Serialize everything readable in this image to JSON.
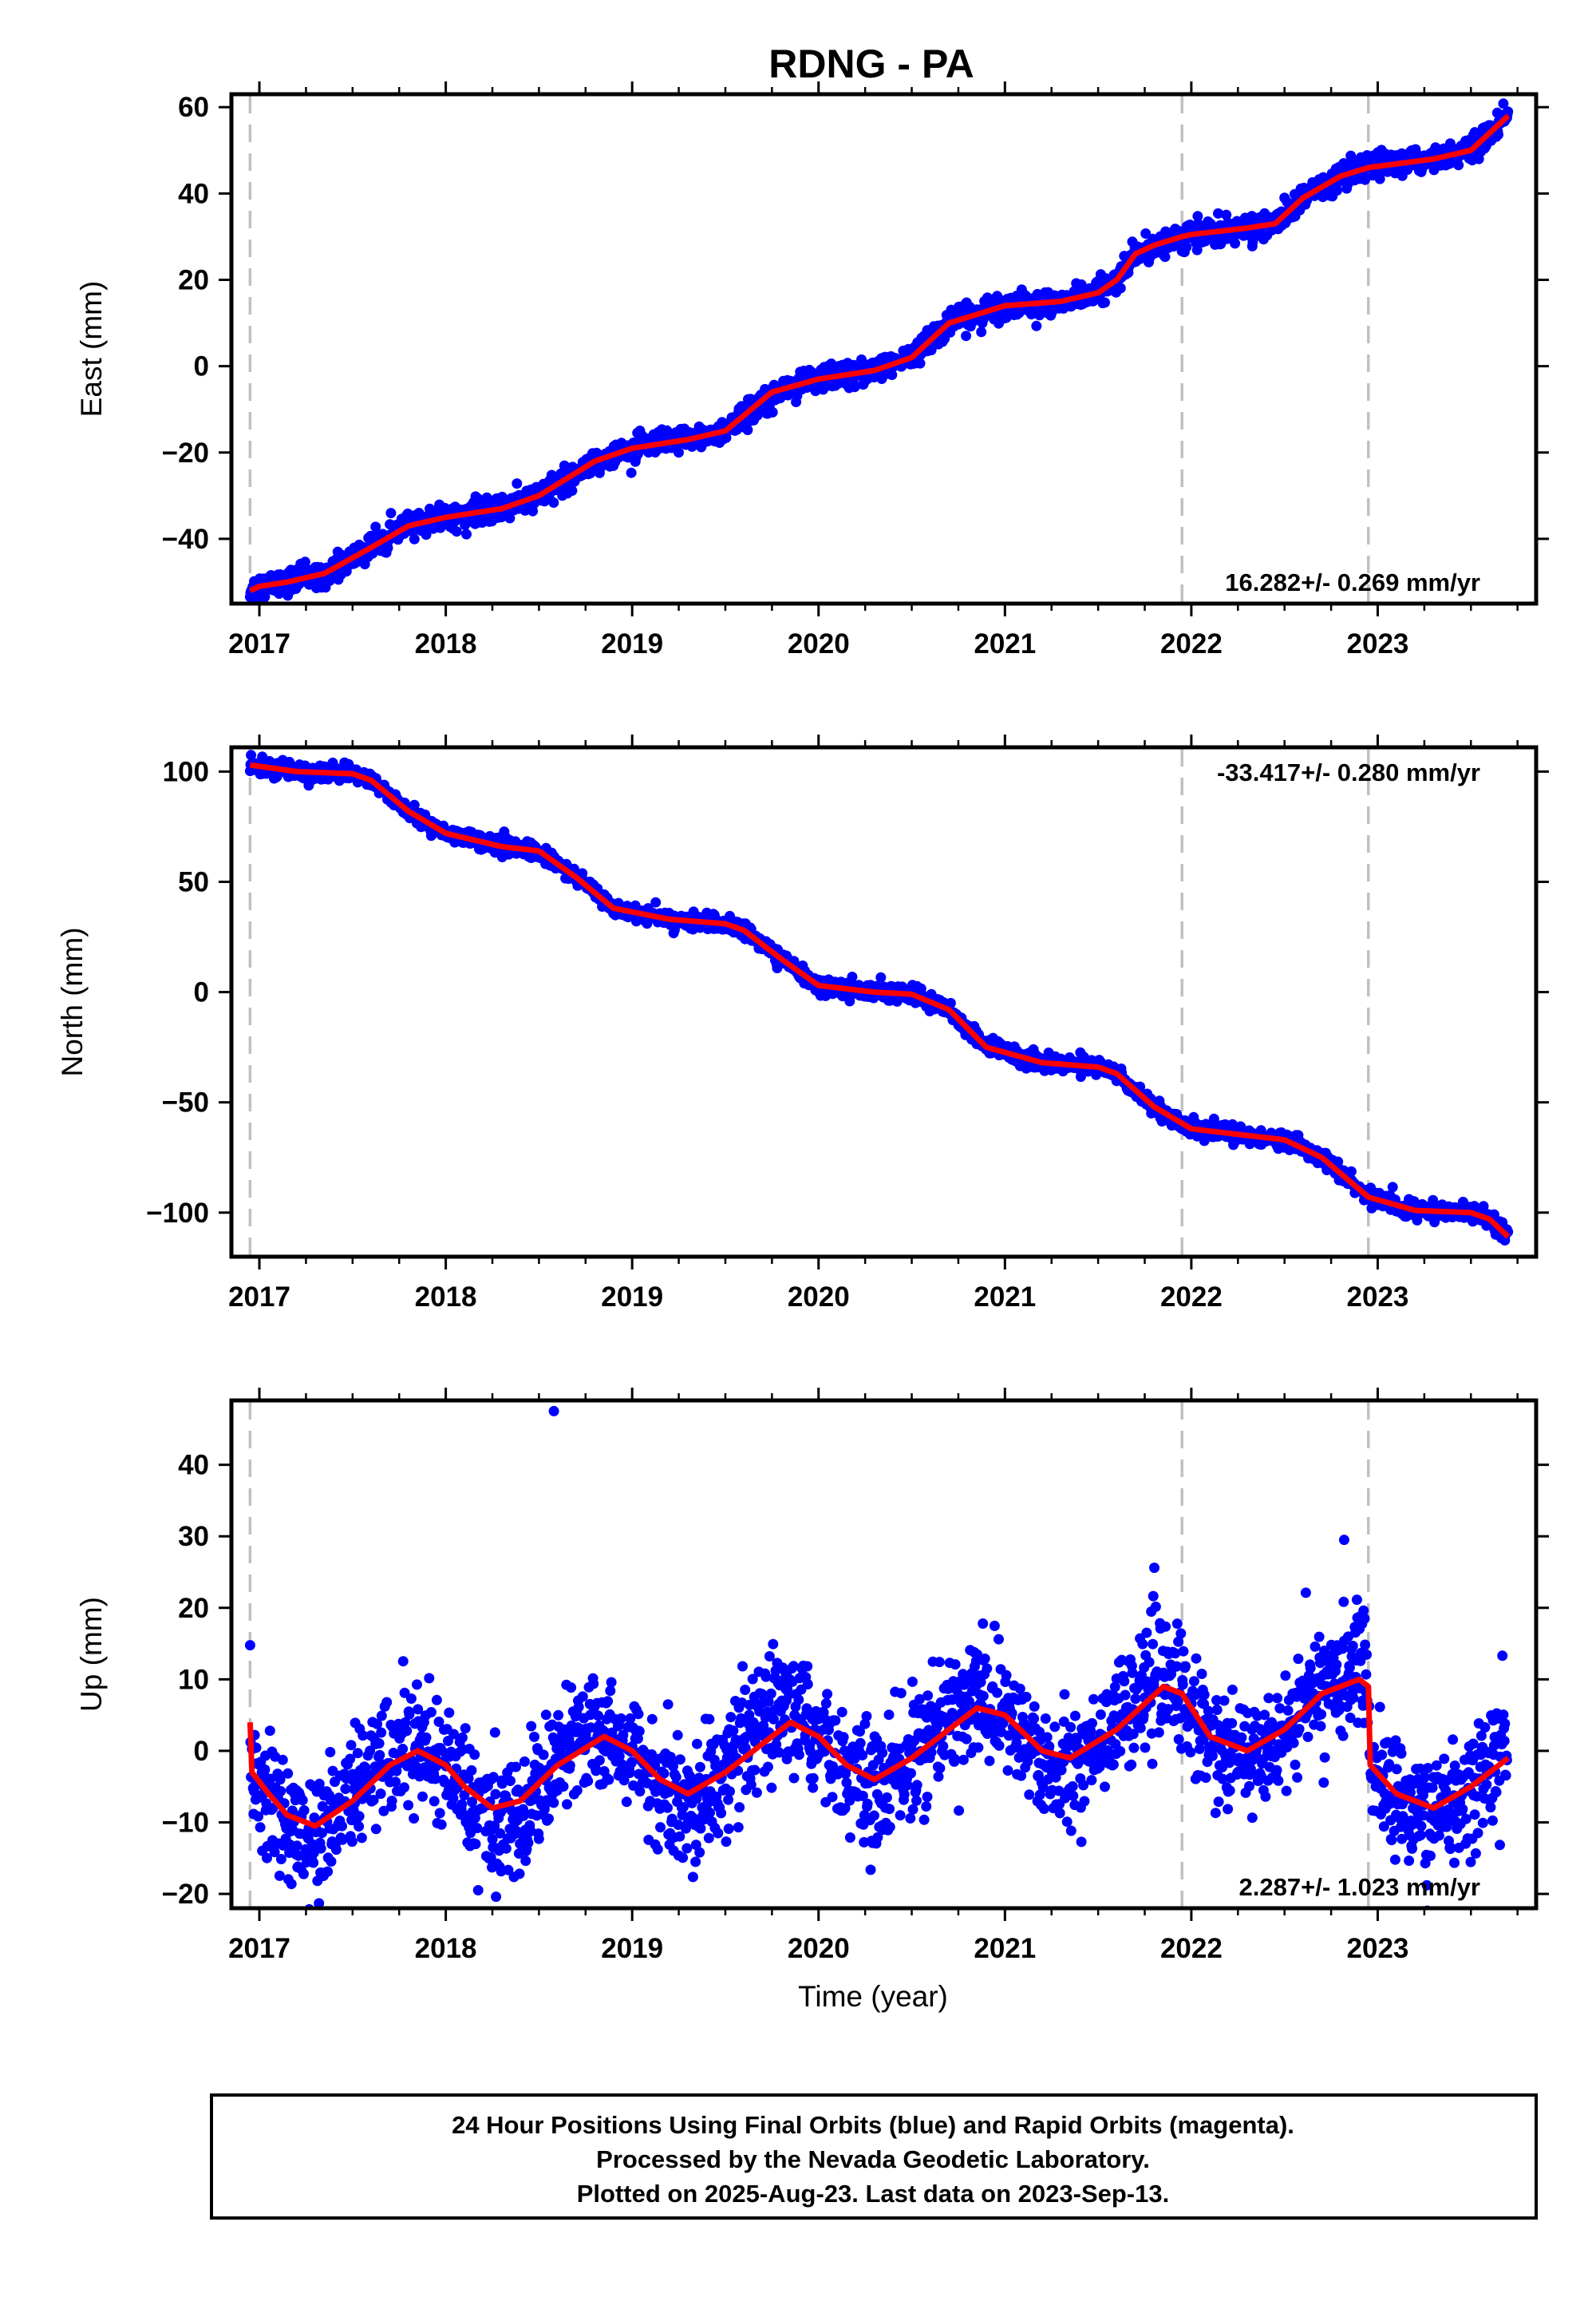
{
  "title": "RDNG - PA",
  "caption": {
    "line1": "24 Hour Positions Using Final Orbits (blue) and Rapid Orbits (magenta).",
    "line2": "Processed by the Nevada Geodetic Laboratory.",
    "line3": "Plotted on 2025-Aug-23. Last data on 2023-Sep-13."
  },
  "colors": {
    "points": "#0000ff",
    "model": "#ff0000",
    "event_lines": "#c0c0c0",
    "frame": "#000000"
  },
  "chart_data": [
    {
      "type": "scatter",
      "id": "east",
      "ylabel": "East (mm)",
      "xlim": [
        2016.85,
        2023.85
      ],
      "ylim": [
        -55,
        63
      ],
      "xticks": [
        2017,
        2018,
        2019,
        2020,
        2021,
        2022,
        2023
      ],
      "yticks": [
        -40,
        -20,
        0,
        20,
        40,
        60
      ],
      "event_lines": [
        2016.95,
        2021.95,
        2022.95
      ],
      "rate_label": "16.282+/- 0.269 mm/yr",
      "rate_position": "bottom-right",
      "model": {
        "x": [
          2016.95,
          2017.0,
          2017.15,
          2017.35,
          2017.6,
          2017.8,
          2018.0,
          2018.3,
          2018.5,
          2018.8,
          2019.0,
          2019.3,
          2019.5,
          2019.75,
          2020.0,
          2020.3,
          2020.5,
          2020.7,
          2021.0,
          2021.3,
          2021.5,
          2021.6,
          2021.7,
          2021.8,
          2021.95,
          2022.0,
          2022.3,
          2022.45,
          2022.6,
          2022.8,
          2022.95,
          2023.3,
          2023.5,
          2023.7
        ],
        "y": [
          -52,
          -51,
          -50,
          -48,
          -42,
          -37,
          -35,
          -33,
          -30,
          -22,
          -19,
          -17,
          -15,
          -6,
          -3,
          -1,
          2,
          10,
          14,
          15,
          17,
          20,
          26,
          28,
          30,
          30.5,
          32,
          33,
          39,
          44,
          46,
          48,
          50,
          58
        ]
      },
      "noise_mm": 1.4,
      "outliers": {
        "x": [
          2022.5
        ],
        "y": [
          39
        ]
      }
    },
    {
      "type": "scatter",
      "id": "north",
      "ylabel": "North (mm)",
      "xlim": [
        2016.85,
        2023.85
      ],
      "ylim": [
        -120,
        111
      ],
      "xticks": [
        2017,
        2018,
        2019,
        2020,
        2021,
        2022,
        2023
      ],
      "yticks": [
        -100,
        -50,
        0,
        50,
        100
      ],
      "event_lines": [
        2016.95,
        2021.95,
        2022.95
      ],
      "rate_label": "-33.417+/- 0.280 mm/yr",
      "rate_position": "top-right",
      "model": {
        "x": [
          2016.95,
          2017.2,
          2017.5,
          2017.6,
          2017.8,
          2018.0,
          2018.3,
          2018.5,
          2018.7,
          2018.9,
          2019.2,
          2019.5,
          2019.6,
          2019.8,
          2020.0,
          2020.3,
          2020.5,
          2020.7,
          2020.9,
          2021.2,
          2021.5,
          2021.6,
          2021.8,
          2022.0,
          2022.3,
          2022.5,
          2022.7,
          2022.95,
          2023.2,
          2023.5,
          2023.6,
          2023.7
        ],
        "y": [
          103,
          100,
          99,
          96,
          82,
          72,
          66,
          64,
          52,
          38,
          33,
          31,
          28,
          15,
          3,
          0,
          -1,
          -8,
          -25,
          -32,
          -34,
          -37,
          -52,
          -62,
          -65,
          -67,
          -75,
          -93,
          -99,
          -100,
          -103,
          -111
        ]
      },
      "noise_mm": 1.8,
      "outliers": {
        "x": [],
        "y": []
      }
    },
    {
      "type": "scatter",
      "id": "up",
      "ylabel": "Up (mm)",
      "xlim": [
        2016.85,
        2023.85
      ],
      "ylim": [
        -22,
        49
      ],
      "xticks": [
        2017,
        2018,
        2019,
        2020,
        2021,
        2022,
        2023
      ],
      "yticks": [
        -20,
        -10,
        0,
        10,
        20,
        30,
        40
      ],
      "event_lines": [
        2016.95,
        2021.95,
        2022.95
      ],
      "rate_label": "2.287+/- 1.023 mm/yr",
      "rate_position": "bottom-right",
      "model": {
        "x": [
          2016.95,
          2016.96,
          2017.05,
          2017.15,
          2017.3,
          2017.5,
          2017.7,
          2017.85,
          2018.0,
          2018.1,
          2018.25,
          2018.4,
          2018.6,
          2018.85,
          2019.0,
          2019.15,
          2019.3,
          2019.5,
          2019.85,
          2020.0,
          2020.15,
          2020.3,
          2020.5,
          2020.85,
          2021.0,
          2021.2,
          2021.35,
          2021.6,
          2021.85,
          2021.95,
          2022.1,
          2022.3,
          2022.5,
          2022.7,
          2022.9,
          2022.95,
          2022.96,
          2023.1,
          2023.3,
          2023.5,
          2023.7
        ],
        "y": [
          4,
          -3,
          -6,
          -9,
          -10.5,
          -7,
          -2,
          0,
          -2,
          -5,
          -8,
          -7,
          -2,
          2,
          0,
          -4,
          -6,
          -3,
          4,
          2,
          -2,
          -4,
          -1,
          6,
          5,
          0,
          -1,
          3,
          9,
          8,
          2,
          0,
          3,
          8,
          10,
          9,
          -2,
          -6,
          -8,
          -5,
          -1
        ]
      },
      "noise_mm": 4.2,
      "outliers": {
        "x": [
          2018.58,
          2022.82
        ],
        "y": [
          47.5,
          29.5
        ]
      }
    }
  ]
}
